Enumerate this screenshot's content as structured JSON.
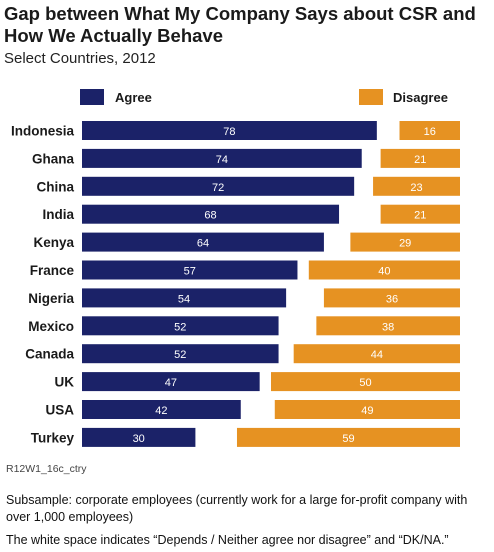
{
  "title": "Gap between What My Company Says about CSR and How We Actually Behave",
  "subtitle": "Select Countries, 2012",
  "colors": {
    "agree": "#1b2268",
    "disagree": "#e69222"
  },
  "chart_data": {
    "type": "bar",
    "orientation": "horizontal",
    "stacked": "diverging",
    "categories": [
      "Indonesia",
      "Ghana",
      "China",
      "India",
      "Kenya",
      "France",
      "Nigeria",
      "Mexico",
      "Canada",
      "UK",
      "USA",
      "Turkey"
    ],
    "series": [
      {
        "name": "Agree",
        "values": [
          78,
          74,
          72,
          68,
          64,
          57,
          54,
          52,
          52,
          47,
          42,
          30
        ]
      },
      {
        "name": "Disagree",
        "values": [
          16,
          21,
          23,
          21,
          29,
          40,
          36,
          38,
          44,
          50,
          49,
          59
        ]
      }
    ],
    "legend_position": "top",
    "value_max": 100,
    "grid": false
  },
  "source_code": "R12W1_16c_ctry",
  "notes": [
    "Subsample: corporate employees (currently work for a large for-profit company with over 1,000 employees)",
    "The white space indicates “Depends / Neither agree nor disagree” and “DK/NA.”"
  ]
}
